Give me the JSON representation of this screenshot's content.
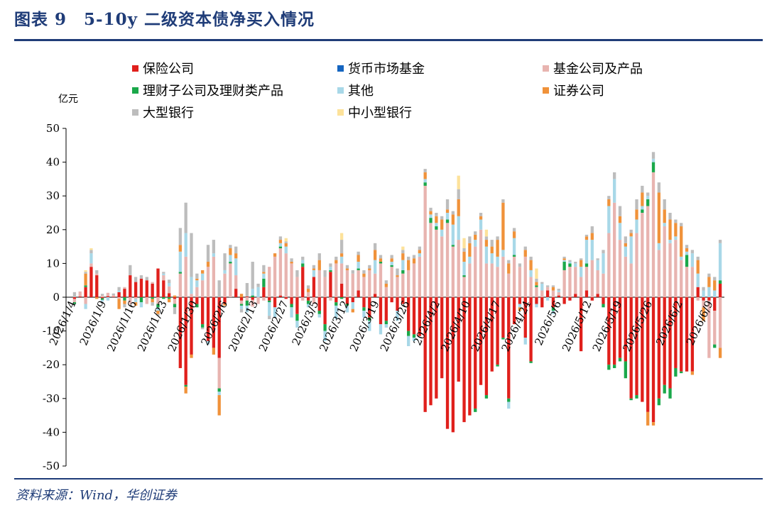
{
  "figure": {
    "title": "图表 9　5-10y 二级资本债净买入情况",
    "source": "资料来源：Wind，华创证券"
  },
  "chart_data": {
    "type": "bar",
    "stacked": true,
    "ylabel": "亿元",
    "ylim": [
      -50,
      50
    ],
    "yticks": [
      -50,
      -40,
      -30,
      -20,
      -10,
      0,
      10,
      20,
      30,
      40,
      50
    ],
    "x_tick_labels": [
      "2026/1/4",
      "2026/1/9",
      "2026/1/16",
      "2026/1/23",
      "2026/1/30",
      "2026/2/6",
      "2026/2/13",
      "2026/2/27",
      "2026/3/5",
      "2026/3/12",
      "2026/3/19",
      "2026/3/26",
      "2026/4/2",
      "2026/4/10",
      "2026/4/17",
      "2026/4/24",
      "2026/5/6",
      "2026/5/12",
      "2026/5/19",
      "2026/5/26",
      "2026/6/2",
      "2026/6/9"
    ],
    "legend_layout": "3 columns above plot",
    "series": [
      {
        "name": "保险公司",
        "color": "#e0201c",
        "values": [
          -0.5,
          0.2,
          3.0,
          9.0,
          6.5,
          -0.3,
          0.3,
          0.1,
          1.5,
          2.5,
          6.5,
          4.5,
          5.5,
          5.0,
          4.0,
          8.5,
          5.0,
          1.2,
          -0.5,
          -21.0,
          -26.0,
          -17.0,
          -2.0,
          -8.0,
          -13.0,
          -15.0,
          -18.0,
          -2.0,
          0.0,
          2.5,
          -1.0,
          0.2,
          -0.8,
          0.0,
          3.0,
          -1.0,
          -3.0,
          0.5,
          -0.5,
          -2.0,
          -5.0,
          9.0,
          -1.0,
          6.0,
          -4.0,
          -8.0,
          7.5,
          -1.5,
          4.0,
          -2.0,
          -1.5,
          2.0,
          -3.0,
          -6.0,
          1.0,
          -8.0,
          -7.0,
          -1.5,
          -4.0,
          -2.0,
          -10.0,
          -11.0,
          -11.5,
          -34.0,
          -32.0,
          -30.0,
          -24.0,
          -39.0,
          -40.0,
          -25.0,
          -37.0,
          -35.0,
          -33.0,
          -26.0,
          -29.0,
          -22.0,
          -20.0,
          -12.0,
          -30.0,
          -8.0,
          -2.0,
          -12.0,
          -19.0,
          -2.0,
          -3.0,
          2.0,
          -3.0,
          0.5,
          -2.0,
          -1.0,
          1.0,
          -16.0,
          2.0,
          -1.0,
          1.0,
          -2.0,
          -20.0,
          -20.0,
          -18.0,
          -19.0,
          -30.0,
          -29.0,
          -31.0,
          -34.0,
          -37.0,
          -30.0,
          -26.0,
          -27.0,
          -21.0,
          -22.0,
          -22.0,
          -22.0,
          3.0,
          -1.0,
          -1.0,
          -4.0,
          4.0
        ]
      },
      {
        "name": "货币市场基金",
        "color": "#1565c0",
        "values": [
          0,
          0,
          0,
          0,
          0,
          0,
          0,
          0,
          0,
          0,
          0,
          0,
          0,
          0,
          0,
          0,
          0,
          0,
          0,
          0,
          0,
          0,
          0,
          0,
          0,
          0,
          0,
          0,
          0,
          0,
          0,
          0,
          0,
          0,
          0,
          0,
          0,
          0,
          0,
          0,
          0,
          0,
          0,
          0,
          0,
          0,
          0,
          0,
          0,
          0,
          0,
          0,
          0,
          0,
          0,
          0,
          0,
          0,
          0,
          0,
          0,
          0,
          0,
          0,
          0,
          0,
          0,
          0,
          0,
          0,
          0,
          0,
          0,
          0,
          0,
          0,
          0,
          0,
          0,
          0,
          0,
          0,
          0,
          0,
          0,
          0,
          0,
          0,
          0,
          0,
          0,
          0,
          0,
          0,
          0,
          0,
          0,
          0,
          0,
          0,
          0,
          0,
          0,
          0,
          0,
          0,
          0,
          0,
          0,
          0,
          0,
          0,
          0,
          0,
          0,
          0,
          0
        ]
      },
      {
        "name": "基金公司及产品",
        "color": "#e8b4b0",
        "values": [
          -1.0,
          1.5,
          -2.0,
          1.0,
          0.5,
          0.5,
          1.0,
          0.5,
          -0.5,
          0.5,
          -2.0,
          -0.5,
          0.0,
          -2.0,
          0.5,
          -2.0,
          1.5,
          2.0,
          -1.5,
          7.0,
          12.0,
          1.0,
          3.0,
          5.0,
          9.0,
          12.0,
          -9.0,
          7.0,
          10.0,
          4.0,
          -1.0,
          -1.0,
          -2.0,
          -2.0,
          -1.0,
          9.0,
          12.0,
          14.0,
          13.0,
          10.0,
          6.0,
          -1.0,
          1.5,
          -2.0,
          8.0,
          6.0,
          -1.0,
          10.0,
          6.0,
          8.0,
          7.0,
          6.0,
          6.0,
          8.0,
          6.0,
          10.0,
          3.0,
          9.0,
          6.0,
          7.0,
          8.0,
          10.0,
          12.0,
          33.0,
          22.0,
          20.0,
          18.0,
          22.0,
          15.0,
          17.0,
          6.0,
          10.0,
          15.0,
          20.0,
          10.0,
          10.0,
          9.0,
          12.0,
          7.0,
          12.0,
          9.0,
          12.0,
          6.0,
          3.0,
          2.0,
          1.0,
          2.0,
          1.0,
          8.0,
          9.0,
          8.0,
          6.0,
          7.0,
          11.0,
          7.0,
          7.0,
          19.0,
          28.0,
          17.0,
          12.0,
          10.0,
          19.0,
          25.0,
          27.0,
          37.0,
          14.0,
          21.0,
          16.0,
          17.0,
          11.0,
          9.0,
          9.0,
          -1.0,
          -2.0,
          -17.0,
          -10.0,
          -15.0
        ]
      },
      {
        "name": "理财子公司及理财类产品",
        "color": "#1aa84a",
        "values": [
          -0.5,
          0.0,
          0.5,
          0.0,
          0.0,
          -0.5,
          0.0,
          0.0,
          0.0,
          -1.0,
          0.0,
          0.0,
          -1.5,
          0.0,
          -0.5,
          -1.0,
          -0.5,
          -0.5,
          -1.0,
          0.5,
          -0.5,
          0.0,
          -1.0,
          -1.0,
          0.0,
          0.0,
          -1.0,
          0.0,
          0.5,
          0.0,
          -0.5,
          -1.5,
          0.5,
          0.0,
          2.5,
          -0.5,
          0.0,
          0.5,
          0.0,
          -1.0,
          -2.0,
          1.0,
          -1.0,
          0.0,
          -1.0,
          -2.0,
          0.5,
          -1.0,
          -0.5,
          -0.5,
          0.0,
          0.5,
          -1.0,
          -1.0,
          0.0,
          0.5,
          -1.0,
          0.5,
          0.0,
          1.0,
          -1.5,
          -1.0,
          0.0,
          1.0,
          1.5,
          1.0,
          0.0,
          1.0,
          0.5,
          0.0,
          0.5,
          0.0,
          -1.0,
          0.0,
          -1.0,
          0.0,
          -0.5,
          -0.5,
          -1.0,
          0.5,
          0.0,
          0.0,
          -0.5,
          0.5,
          0.0,
          0.0,
          -1.0,
          0.0,
          2.5,
          1.0,
          0.0,
          0.0,
          1.0,
          0.0,
          0.0,
          -1.0,
          -1.5,
          -1.0,
          -1.0,
          -5.0,
          -0.5,
          -1.0,
          1.0,
          2.0,
          3.0,
          -2.0,
          -2.5,
          -3.0,
          -2.5,
          -0.5,
          3.5,
          0.0,
          0.0,
          0.0,
          0.0,
          -1.0,
          1.0
        ]
      },
      {
        "name": "其他",
        "color": "#a8d8e8",
        "values": [
          0.0,
          0.0,
          -1.5,
          3.0,
          0.0,
          -0.5,
          -1.0,
          0.0,
          0.5,
          0.0,
          0.0,
          -1.0,
          -1.5,
          0.0,
          0.0,
          -1.0,
          0.5,
          1.0,
          0.0,
          6.0,
          7.0,
          5.0,
          2.0,
          2.0,
          -1.0,
          1.0,
          -1.0,
          1.0,
          2.0,
          5.0,
          -1.0,
          -2.0,
          2.0,
          3.0,
          1.5,
          -4.0,
          -3.0,
          1.0,
          2.0,
          -3.0,
          -2.0,
          1.0,
          -1.0,
          2.0,
          -1.0,
          -3.0,
          1.0,
          -4.0,
          2.0,
          -2.0,
          -2.0,
          2.0,
          -2.0,
          -3.0,
          4.0,
          -3.0,
          -1.0,
          1.0,
          -3.0,
          3.0,
          -3.0,
          -1.0,
          1.0,
          1.0,
          1.0,
          1.0,
          2.0,
          2.0,
          6.0,
          7.0,
          4.0,
          2.0,
          2.0,
          3.0,
          5.0,
          3.0,
          3.0,
          2.0,
          -2.0,
          5.0,
          -1.0,
          -2.0,
          2.0,
          -1.0,
          2.0,
          -1.0,
          -1.0,
          0.5,
          0.5,
          0.5,
          1.0,
          3.0,
          7.0,
          6.0,
          3.0,
          6.0,
          8.0,
          7.0,
          5.0,
          3.0,
          8.0,
          4.0,
          1.0,
          1.0,
          1.0,
          2.0,
          1.0,
          1.0,
          1.0,
          1.0,
          1.0,
          4.0,
          4.0,
          2.0,
          3.0,
          2.0,
          11.0
        ]
      },
      {
        "name": "证券公司",
        "color": "#f0923a",
        "values": [
          0.0,
          0.0,
          3.5,
          0.0,
          -0.5,
          0.0,
          0.0,
          0.0,
          -3.0,
          -1.0,
          0.0,
          -1.0,
          0.0,
          0.0,
          -1.0,
          -1.0,
          0.0,
          -1.0,
          0.5,
          2.0,
          -2.0,
          -1.0,
          0.5,
          1.0,
          1.5,
          -2.0,
          -6.0,
          -0.5,
          2.0,
          1.5,
          1.0,
          0.0,
          0.0,
          0.0,
          0.5,
          0.0,
          1.0,
          1.0,
          1.0,
          0.5,
          0.0,
          0.0,
          1.0,
          0.5,
          3.0,
          0.0,
          0.0,
          1.0,
          1.0,
          0.5,
          -1.0,
          2.0,
          1.0,
          0.5,
          3.0,
          1.0,
          1.0,
          1.0,
          0.5,
          2.0,
          3.0,
          1.5,
          1.0,
          2.0,
          1.0,
          2.0,
          3.0,
          1.0,
          3.0,
          5.0,
          3.0,
          4.0,
          1.5,
          1.0,
          2.0,
          2.0,
          5.0,
          14.0,
          3.0,
          2.0,
          -1.0,
          2.0,
          3.0,
          1.0,
          0.0,
          0.0,
          1.0,
          0.0,
          0.5,
          0.0,
          0.0,
          2.0,
          1.0,
          2.0,
          0.0,
          0.0,
          2.0,
          0.0,
          2.0,
          1.0,
          1.0,
          3.0,
          4.0,
          -4.0,
          -1.0,
          15.0,
          4.0,
          6.0,
          4.0,
          9.0,
          1.0,
          -1.0,
          4.0,
          -4.0,
          3.0,
          3.0,
          -3.0
        ]
      },
      {
        "name": "大型银行",
        "color": "#bdbdbd",
        "values": [
          1.5,
          0.0,
          0.5,
          1.0,
          1.0,
          0.5,
          0.0,
          0.5,
          1.0,
          -1.0,
          3.0,
          1.5,
          1.0,
          1.0,
          -1.0,
          -0.5,
          0.5,
          1.0,
          -2.0,
          5.0,
          9.0,
          13.0,
          1.5,
          -0.5,
          5.0,
          4.0,
          5.0,
          5.0,
          1.0,
          2.0,
          -1.0,
          4.0,
          8.0,
          1.0,
          2.0,
          -1.0,
          0.0,
          1.0,
          0.5,
          1.0,
          2.0,
          1.0,
          1.0,
          1.0,
          2.0,
          2.0,
          1.0,
          1.0,
          4.0,
          1.0,
          1.0,
          1.0,
          1.0,
          1.0,
          2.0,
          1.0,
          1.0,
          1.0,
          2.0,
          1.0,
          1.0,
          1.0,
          1.0,
          1.0,
          1.0,
          1.0,
          1.0,
          3.0,
          1.0,
          3.0,
          1.0,
          2.0,
          1.0,
          1.0,
          1.0,
          2.0,
          1.0,
          1.0,
          1.0,
          1.0,
          1.0,
          1.0,
          1.0,
          1.0,
          0.5,
          0.5,
          0.5,
          0.5,
          0.5,
          0.5,
          0.5,
          0.5,
          0.5,
          2.0,
          0.5,
          1.0,
          1.0,
          2.0,
          3.0,
          2.0,
          1.0,
          3.0,
          2.0,
          1.0,
          2.0,
          3.0,
          3.0,
          2.0,
          1.0,
          1.0,
          1.0,
          1.0,
          1.0,
          1.0,
          1.0,
          1.0,
          1.0
        ]
      },
      {
        "name": "中小型银行",
        "color": "#fde29a",
        "values": [
          0.0,
          0.0,
          0.5,
          0.5,
          0.0,
          0.0,
          0.0,
          0.0,
          0.0,
          0.0,
          0.0,
          0.0,
          0.0,
          0.0,
          0.0,
          0.0,
          0.0,
          0.0,
          0.0,
          0.0,
          0.0,
          0.0,
          0.0,
          0.0,
          0.0,
          0.0,
          0.0,
          0.0,
          0.0,
          0.0,
          0.0,
          0.0,
          0.0,
          0.0,
          0.0,
          0.0,
          0.0,
          0.0,
          1.0,
          0.0,
          0.0,
          0.0,
          0.0,
          0.0,
          0.0,
          0.0,
          0.0,
          0.0,
          2.0,
          0.0,
          0.0,
          0.0,
          0.0,
          0.0,
          0.0,
          0.0,
          0.0,
          0.0,
          0.0,
          1.0,
          0.0,
          0.0,
          0.0,
          0.0,
          0.0,
          0.0,
          0.0,
          0.0,
          0.0,
          4.0,
          3.0,
          0.0,
          0.0,
          0.0,
          2.0,
          0.0,
          0.0,
          0.0,
          0.0,
          0.0,
          0.0,
          0.0,
          0.0,
          3.0,
          0.0,
          0.0,
          0.0,
          0.0,
          0.0,
          0.0,
          0.0,
          0.0,
          0.0,
          0.0,
          0.0,
          0.0,
          0.0,
          0.0,
          0.0,
          0.0,
          0.0,
          0.0,
          0.0,
          0.0,
          0.0,
          0.0,
          0.0,
          0.0,
          0.0,
          0.0,
          0.0,
          0.0,
          0.0,
          0.0,
          0.0,
          0.0,
          0.0
        ]
      }
    ]
  }
}
